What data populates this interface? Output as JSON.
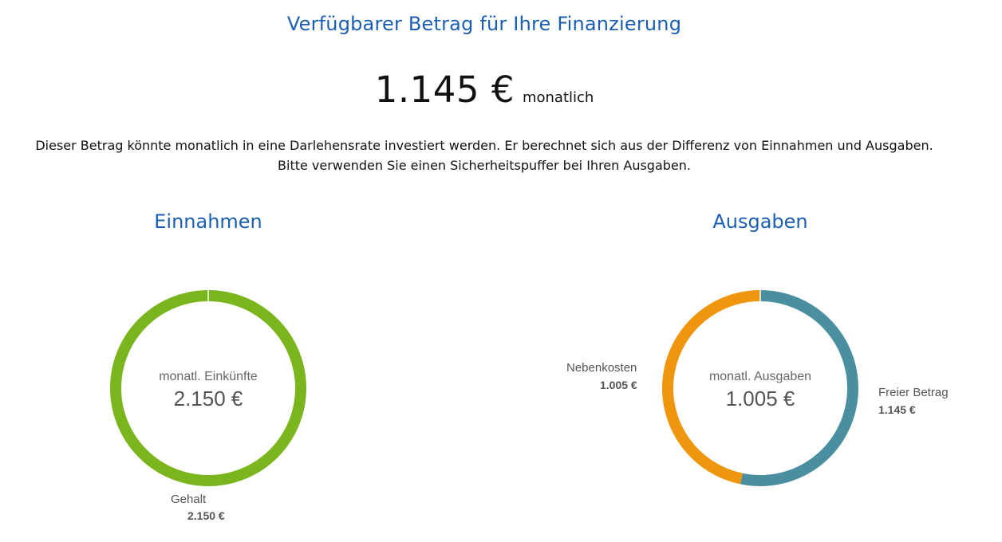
{
  "header": {
    "title": "Verfügbarer Betrag für Ihre Finanzierung",
    "amount": "1.145 €",
    "amount_unit": "monatlich",
    "description_line1": "Dieser Betrag könnte monatlich in eine Darlehensrate investiert werden. Er berechnet sich aus der Differenz von Einnahmen und Ausgaben.",
    "description_line2": "Bitte verwenden Sie einen Sicherheitspuffer bei Ihren Ausgaben."
  },
  "income": {
    "title": "Einnahmen",
    "center_label": "monatl. Einkünfte",
    "center_value": "2.150 €"
  },
  "expenses": {
    "title": "Ausgaben",
    "center_label": "monatl. Ausgaben",
    "center_value": "1.005 €"
  },
  "chart_data": [
    {
      "type": "pie",
      "title": "Einnahmen",
      "donut": true,
      "slices": [
        {
          "label": "Gehalt",
          "value": 2150,
          "value_label": "2.150 €",
          "color": "#7ab51d"
        }
      ]
    },
    {
      "type": "pie",
      "title": "Ausgaben",
      "donut": true,
      "slices": [
        {
          "label": "Freier Betrag",
          "value": 1145,
          "value_label": "1.145 €",
          "color": "#4a8fa0"
        },
        {
          "label": "Nebenkosten",
          "value": 1005,
          "value_label": "1.005 €",
          "color": "#f0960e"
        }
      ]
    }
  ]
}
